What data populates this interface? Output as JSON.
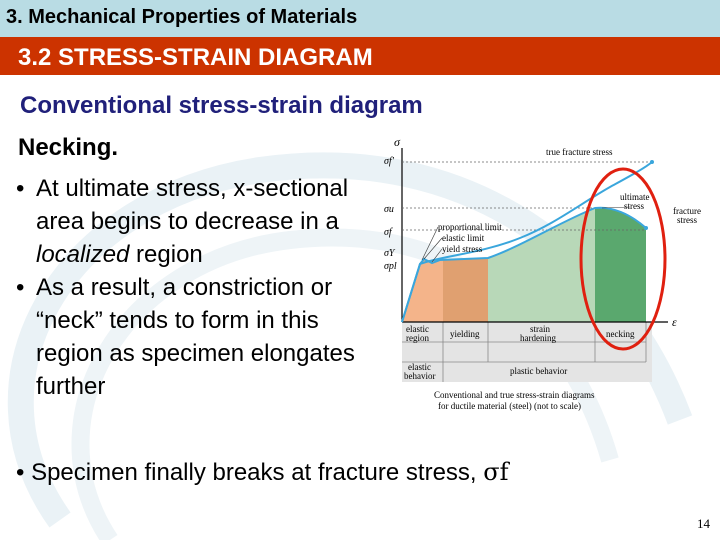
{
  "header": {
    "course_title": "3. Mechanical Properties of Materials",
    "section_title": "3.2 STRESS-STRAIN DIAGRAM"
  },
  "content": {
    "heading": "Conventional stress-strain diagram",
    "subheading": "Necking.",
    "bullets": [
      {
        "pre": "At ultimate stress, x-sectional area begins to decrease in a ",
        "em": "localized",
        "post": " region"
      },
      {
        "pre": "As a result, a constriction or “neck” tends to form in this region as specimen elongates further",
        "em": "",
        "post": ""
      }
    ],
    "bottom_bullet": {
      "text": "Specimen finally breaks at fracture stress, ",
      "symbol": "σf"
    }
  },
  "diagram": {
    "axis_y": "σ",
    "axis_x": "ε",
    "y_ticks": [
      "σf′",
      "σu",
      "σf",
      "σY",
      "σpl"
    ],
    "labels": {
      "true_fracture": "true fracture stress",
      "ultimate": [
        "ultimate",
        "stress"
      ],
      "fracture": [
        "fracture",
        "stress"
      ],
      "proportional_limit": "proportional limit",
      "elastic_limit": "elastic limit",
      "yield_stress": "yield stress"
    },
    "regions": {
      "elastic": [
        "elastic",
        "region"
      ],
      "yielding": "yielding",
      "strain_hardening": [
        "strain",
        "hardening"
      ],
      "necking": "necking"
    },
    "behavior": {
      "elastic": [
        "elastic",
        "behavior"
      ],
      "plastic": "plastic behavior"
    },
    "caption": [
      "Conventional and true stress-strain diagrams",
      "for ductile material (steel) (not to scale)"
    ],
    "colors": {
      "elastic": "#f4b48a",
      "yielding": "#e0a070",
      "hardening": "#b8d8b8",
      "necking": "#5aa86e",
      "curve": "#3aa6dc",
      "highlight": "#e02010"
    }
  },
  "page_number": "14"
}
